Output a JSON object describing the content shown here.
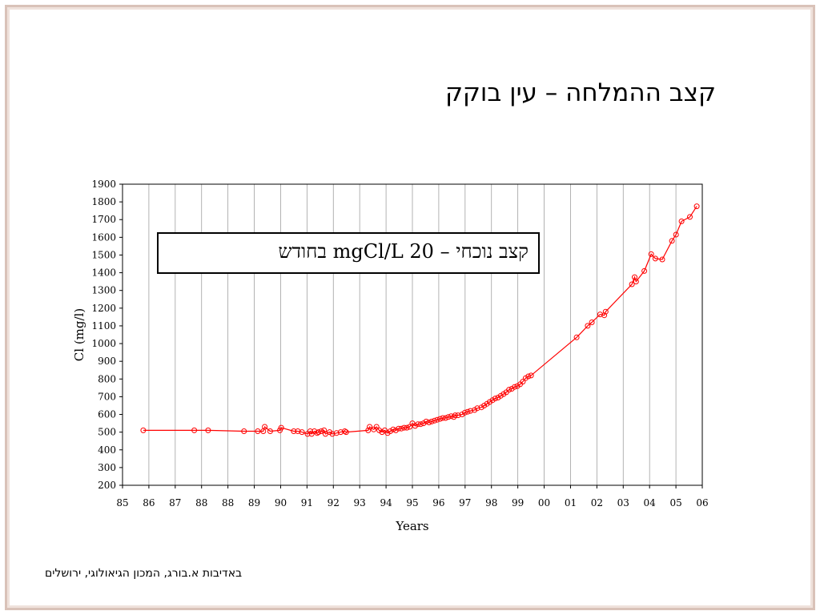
{
  "slide": {
    "title": "קצב ההמלחה – עין בוקק",
    "note": "קצב נוכחי – 20 mgCl/L בחודש",
    "credit": "באדיבות א.בורג, המכון הגיאולוגי, ירושלים"
  },
  "chart_data": {
    "type": "line",
    "xlabel": "Years",
    "ylabel": "Cl (mg/l)",
    "xlim": [
      85,
      106
    ],
    "ylim": [
      200,
      1900
    ],
    "x_ticks": [
      "85",
      "86",
      "87",
      "88",
      "88",
      "89",
      "90",
      "91",
      "92",
      "93",
      "94",
      "95",
      "96",
      "97",
      "98",
      "99",
      "00",
      "01",
      "02",
      "03",
      "04",
      "05",
      "06"
    ],
    "y_ticks": [
      200,
      300,
      400,
      500,
      600,
      700,
      800,
      900,
      1000,
      1100,
      1200,
      1300,
      1400,
      1500,
      1600,
      1700,
      1800,
      1900
    ],
    "grid": "vertical",
    "series": [
      {
        "color": "#ff0000",
        "marker": "open-circle",
        "points": [
          [
            85.75,
            510
          ],
          [
            87.6,
            510
          ],
          [
            88.1,
            510
          ],
          [
            89.4,
            505
          ],
          [
            89.9,
            505
          ],
          [
            90.1,
            505
          ],
          [
            90.15,
            530
          ],
          [
            90.35,
            505
          ],
          [
            90.7,
            510
          ],
          [
            90.75,
            525
          ],
          [
            91.2,
            505
          ],
          [
            91.35,
            505
          ],
          [
            91.5,
            500
          ],
          [
            91.7,
            490
          ],
          [
            91.8,
            505
          ],
          [
            91.85,
            490
          ],
          [
            91.95,
            505
          ],
          [
            92.05,
            495
          ],
          [
            92.1,
            500
          ],
          [
            92.2,
            505
          ],
          [
            92.3,
            510
          ],
          [
            92.35,
            490
          ],
          [
            92.5,
            500
          ],
          [
            92.6,
            490
          ],
          [
            92.75,
            495
          ],
          [
            92.9,
            500
          ],
          [
            93.05,
            505
          ],
          [
            93.1,
            500
          ],
          [
            93.9,
            510
          ],
          [
            93.95,
            530
          ],
          [
            94.1,
            515
          ],
          [
            94.2,
            530
          ],
          [
            94.3,
            510
          ],
          [
            94.4,
            500
          ],
          [
            94.5,
            510
          ],
          [
            94.6,
            495
          ],
          [
            94.7,
            505
          ],
          [
            94.8,
            515
          ],
          [
            94.9,
            510
          ],
          [
            95.0,
            520
          ],
          [
            95.1,
            520
          ],
          [
            95.2,
            525
          ],
          [
            95.3,
            525
          ],
          [
            95.4,
            530
          ],
          [
            95.5,
            550
          ],
          [
            95.6,
            535
          ],
          [
            95.7,
            545
          ],
          [
            95.8,
            545
          ],
          [
            95.9,
            550
          ],
          [
            96.0,
            560
          ],
          [
            96.1,
            555
          ],
          [
            96.2,
            560
          ],
          [
            96.3,
            565
          ],
          [
            96.4,
            570
          ],
          [
            96.5,
            575
          ],
          [
            96.6,
            580
          ],
          [
            96.7,
            580
          ],
          [
            96.8,
            585
          ],
          [
            96.9,
            590
          ],
          [
            97.0,
            585
          ],
          [
            97.05,
            595
          ],
          [
            97.15,
            595
          ],
          [
            97.3,
            600
          ],
          [
            97.4,
            610
          ],
          [
            97.5,
            615
          ],
          [
            97.6,
            620
          ],
          [
            97.75,
            625
          ],
          [
            97.85,
            635
          ],
          [
            98.0,
            640
          ],
          [
            98.1,
            650
          ],
          [
            98.2,
            660
          ],
          [
            98.3,
            670
          ],
          [
            98.4,
            680
          ],
          [
            98.5,
            690
          ],
          [
            98.6,
            695
          ],
          [
            98.7,
            705
          ],
          [
            98.8,
            715
          ],
          [
            98.9,
            725
          ],
          [
            99.0,
            740
          ],
          [
            99.1,
            745
          ],
          [
            99.2,
            755
          ],
          [
            99.3,
            760
          ],
          [
            99.4,
            770
          ],
          [
            99.5,
            785
          ],
          [
            99.6,
            805
          ],
          [
            99.7,
            815
          ],
          [
            99.8,
            820
          ],
          [
            101.45,
            1035
          ],
          [
            101.85,
            1100
          ],
          [
            102.0,
            1120
          ],
          [
            102.3,
            1165
          ],
          [
            102.45,
            1160
          ],
          [
            102.5,
            1180
          ],
          [
            103.45,
            1335
          ],
          [
            103.55,
            1375
          ],
          [
            103.6,
            1350
          ],
          [
            103.9,
            1410
          ],
          [
            104.15,
            1505
          ],
          [
            104.3,
            1480
          ],
          [
            104.55,
            1475
          ],
          [
            104.9,
            1580
          ],
          [
            105.05,
            1615
          ],
          [
            105.25,
            1690
          ],
          [
            105.55,
            1715
          ],
          [
            105.8,
            1775
          ]
        ]
      }
    ]
  }
}
